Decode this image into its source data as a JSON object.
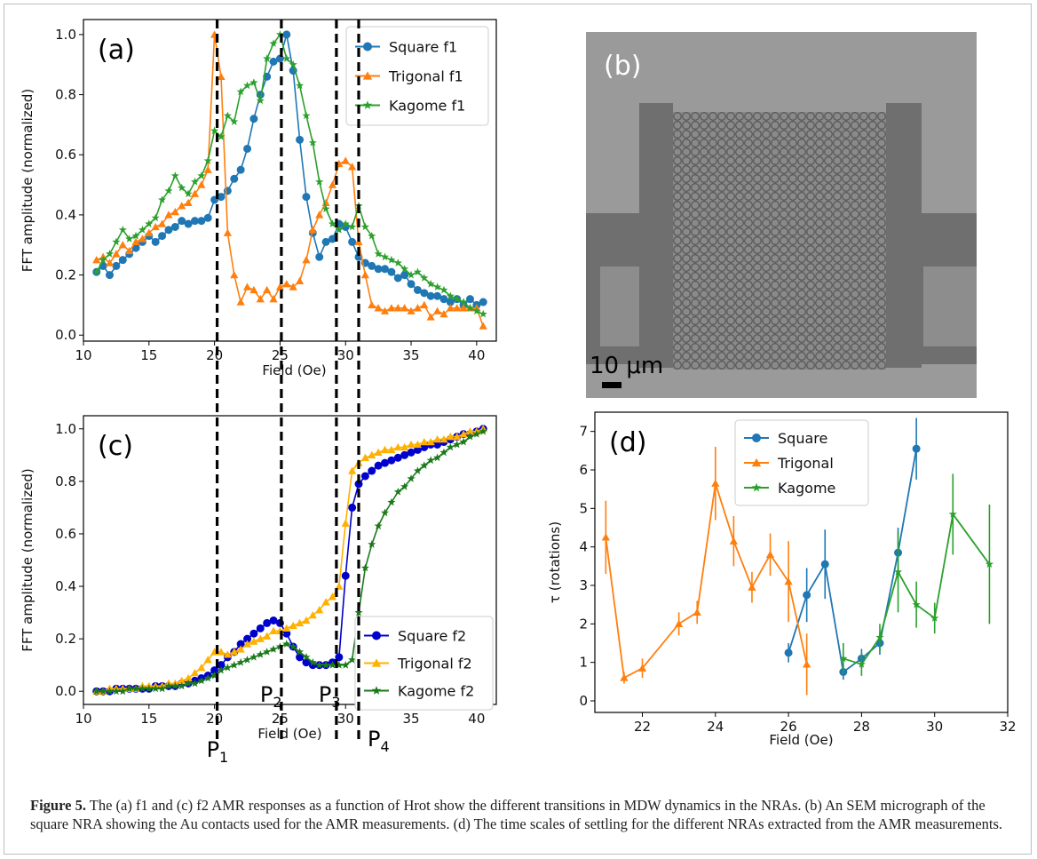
{
  "caption": {
    "label": "Figure 5.",
    "text": "The (a) f1 and (c) f2 AMR responses as a function of Hrot show the different transitions in MDW dynamics in the NRAs. (b) An SEM micrograph of the square NRA showing the Au contacts used for the AMR measurements. (d) The time scales of settling for the different NRAs extracted from the AMR measurements."
  },
  "panel_b": {
    "panel_label": "(b)",
    "scale_bar": "10 μm"
  },
  "transitions": [
    {
      "label": "P1",
      "x": 20.2
    },
    {
      "label": "P2",
      "x": 25.1
    },
    {
      "label": "P3",
      "x": 29.3
    },
    {
      "label": "P4",
      "x": 31.0
    }
  ],
  "chart_data": [
    {
      "id": "a",
      "type": "line",
      "panel_label": "(a)",
      "xlabel": "Field (Oe)",
      "ylabel": "FFT amplitude (normalized)",
      "xlim": [
        10,
        41.5
      ],
      "ylim": [
        -0.02,
        1.05
      ],
      "xticks": [
        10,
        15,
        20,
        25,
        30,
        35,
        40
      ],
      "yticks": [
        0.0,
        0.2,
        0.4,
        0.6,
        0.8,
        1.0
      ],
      "legend": "top-right",
      "series": [
        {
          "name": "Square f1",
          "color": "#1f77b4",
          "marker": "circle",
          "x": [
            11,
            11.5,
            12,
            12.5,
            13,
            13.5,
            14,
            14.5,
            15,
            15.5,
            16,
            16.5,
            17,
            17.5,
            18,
            18.5,
            19,
            19.5,
            20,
            20.5,
            21,
            21.5,
            22,
            22.5,
            23,
            23.5,
            24,
            24.5,
            25,
            25.5,
            26,
            26.5,
            27,
            27.5,
            28,
            28.5,
            29,
            29.5,
            30,
            30.5,
            31,
            31.5,
            32,
            32.5,
            33,
            33.5,
            34,
            34.5,
            35,
            35.5,
            36,
            36.5,
            37,
            37.5,
            38,
            38.5,
            39,
            39.5,
            40,
            40.5
          ],
          "y": [
            0.21,
            0.23,
            0.2,
            0.23,
            0.25,
            0.27,
            0.29,
            0.31,
            0.33,
            0.31,
            0.33,
            0.35,
            0.36,
            0.38,
            0.37,
            0.38,
            0.38,
            0.39,
            0.45,
            0.46,
            0.48,
            0.52,
            0.55,
            0.62,
            0.72,
            0.8,
            0.86,
            0.91,
            0.92,
            1.0,
            0.88,
            0.65,
            0.46,
            0.34,
            0.26,
            0.31,
            0.32,
            0.37,
            0.36,
            0.31,
            0.26,
            0.24,
            0.23,
            0.22,
            0.22,
            0.21,
            0.19,
            0.2,
            0.17,
            0.15,
            0.14,
            0.13,
            0.13,
            0.12,
            0.11,
            0.12,
            0.1,
            0.12,
            0.1,
            0.11
          ]
        },
        {
          "name": "Trigonal f1",
          "color": "#ff7f0e",
          "marker": "triangle",
          "x": [
            11,
            11.5,
            12,
            12.5,
            13,
            13.5,
            14,
            14.5,
            15,
            15.5,
            16,
            16.5,
            17,
            17.5,
            18,
            18.5,
            19,
            19.5,
            20,
            20.5,
            21,
            21.5,
            22,
            22.5,
            23,
            23.5,
            24,
            24.5,
            25,
            25.5,
            26,
            26.5,
            27,
            27.5,
            28,
            28.5,
            29,
            29.5,
            30,
            30.5,
            31,
            31.5,
            32,
            32.5,
            33,
            33.5,
            34,
            34.5,
            35,
            35.5,
            36,
            36.5,
            37,
            37.5,
            38,
            38.5,
            39,
            39.5,
            40,
            40.5
          ],
          "y": [
            0.25,
            0.26,
            0.24,
            0.27,
            0.3,
            0.28,
            0.31,
            0.32,
            0.34,
            0.36,
            0.37,
            0.4,
            0.41,
            0.43,
            0.44,
            0.47,
            0.5,
            0.55,
            1.0,
            0.86,
            0.34,
            0.2,
            0.11,
            0.16,
            0.15,
            0.12,
            0.15,
            0.12,
            0.16,
            0.17,
            0.16,
            0.18,
            0.25,
            0.35,
            0.4,
            0.44,
            0.5,
            0.57,
            0.58,
            0.56,
            0.31,
            0.2,
            0.1,
            0.09,
            0.08,
            0.09,
            0.09,
            0.09,
            0.08,
            0.09,
            0.1,
            0.06,
            0.08,
            0.07,
            0.09,
            0.09,
            0.09,
            0.09,
            0.09,
            0.03
          ]
        },
        {
          "name": "Kagome f1",
          "color": "#2ca02c",
          "marker": "star",
          "x": [
            11,
            11.5,
            12,
            12.5,
            13,
            13.5,
            14,
            14.5,
            15,
            15.5,
            16,
            16.5,
            17,
            17.5,
            18,
            18.5,
            19,
            19.5,
            20,
            20.5,
            21,
            21.5,
            22,
            22.5,
            23,
            23.5,
            24,
            24.5,
            25,
            25.5,
            26,
            26.5,
            27,
            27.5,
            28,
            28.5,
            29,
            29.5,
            30,
            30.5,
            31,
            31.5,
            32,
            32.5,
            33,
            33.5,
            34,
            34.5,
            35,
            35.5,
            36,
            36.5,
            37,
            37.5,
            38,
            38.5,
            39,
            39.5,
            40,
            40.5
          ],
          "y": [
            0.21,
            0.25,
            0.27,
            0.31,
            0.35,
            0.32,
            0.33,
            0.35,
            0.37,
            0.39,
            0.45,
            0.48,
            0.53,
            0.49,
            0.47,
            0.51,
            0.53,
            0.58,
            0.68,
            0.66,
            0.73,
            0.71,
            0.81,
            0.83,
            0.84,
            0.78,
            0.92,
            0.97,
            1.0,
            0.92,
            0.9,
            0.83,
            0.73,
            0.64,
            0.51,
            0.42,
            0.37,
            0.35,
            0.37,
            0.36,
            0.43,
            0.36,
            0.33,
            0.27,
            0.26,
            0.25,
            0.24,
            0.22,
            0.2,
            0.21,
            0.19,
            0.17,
            0.16,
            0.15,
            0.13,
            0.12,
            0.11,
            0.09,
            0.08,
            0.07
          ]
        }
      ]
    },
    {
      "id": "c",
      "type": "line",
      "panel_label": "(c)",
      "xlabel": "Field (Oe)",
      "ylabel": "FFT amplitude (normalized)",
      "xlim": [
        10,
        41.5
      ],
      "ylim": [
        -0.05,
        1.05
      ],
      "xticks": [
        10,
        15,
        20,
        25,
        30,
        35,
        40
      ],
      "yticks": [
        0.0,
        0.2,
        0.4,
        0.6,
        0.8,
        1.0
      ],
      "legend": "bottom-right",
      "series": [
        {
          "name": "Square f2",
          "color": "#0000cc",
          "marker": "circle",
          "x": [
            11,
            11.5,
            12,
            12.5,
            13,
            13.5,
            14,
            14.5,
            15,
            15.5,
            16,
            16.5,
            17,
            17.5,
            18,
            18.5,
            19,
            19.5,
            20,
            20.5,
            21,
            21.5,
            22,
            22.5,
            23,
            23.5,
            24,
            24.5,
            25,
            25.5,
            26,
            26.5,
            27,
            27.5,
            28,
            28.5,
            29,
            29.5,
            30,
            30.5,
            31,
            31.5,
            32,
            32.5,
            33,
            33.5,
            34,
            34.5,
            35,
            35.5,
            36,
            36.5,
            37,
            37.5,
            38,
            38.5,
            39,
            39.5,
            40,
            40.5
          ],
          "y": [
            0.0,
            0.0,
            0.0,
            0.01,
            0.01,
            0.01,
            0.01,
            0.01,
            0.01,
            0.02,
            0.02,
            0.02,
            0.02,
            0.03,
            0.03,
            0.04,
            0.05,
            0.06,
            0.08,
            0.1,
            0.13,
            0.15,
            0.18,
            0.2,
            0.22,
            0.24,
            0.26,
            0.27,
            0.26,
            0.22,
            0.17,
            0.13,
            0.11,
            0.1,
            0.1,
            0.1,
            0.11,
            0.13,
            0.44,
            0.7,
            0.79,
            0.82,
            0.84,
            0.86,
            0.87,
            0.88,
            0.89,
            0.9,
            0.91,
            0.92,
            0.93,
            0.94,
            0.94,
            0.95,
            0.96,
            0.97,
            0.98,
            0.98,
            0.99,
            1.0
          ]
        },
        {
          "name": "Trigonal f2",
          "color": "#ffb000",
          "marker": "triangle",
          "x": [
            11,
            11.5,
            12,
            12.5,
            13,
            13.5,
            14,
            14.5,
            15,
            15.5,
            16,
            16.5,
            17,
            17.5,
            18,
            18.5,
            19,
            19.5,
            20,
            20.5,
            21,
            21.5,
            22,
            22.5,
            23,
            23.5,
            24,
            24.5,
            25,
            25.5,
            26,
            26.5,
            27,
            27.5,
            28,
            28.5,
            29,
            29.5,
            30,
            30.5,
            31,
            31.5,
            32,
            32.5,
            33,
            33.5,
            34,
            34.5,
            35,
            35.5,
            36,
            36.5,
            37,
            37.5,
            38,
            38.5,
            39,
            39.5,
            40,
            40.5
          ],
          "y": [
            0.0,
            0.0,
            0.01,
            0.01,
            0.01,
            0.01,
            0.01,
            0.02,
            0.02,
            0.02,
            0.02,
            0.03,
            0.03,
            0.04,
            0.05,
            0.07,
            0.09,
            0.12,
            0.15,
            0.15,
            0.14,
            0.15,
            0.16,
            0.18,
            0.19,
            0.2,
            0.21,
            0.23,
            0.23,
            0.24,
            0.25,
            0.26,
            0.27,
            0.29,
            0.31,
            0.34,
            0.36,
            0.4,
            0.64,
            0.84,
            0.87,
            0.89,
            0.9,
            0.91,
            0.92,
            0.92,
            0.93,
            0.93,
            0.94,
            0.94,
            0.95,
            0.95,
            0.96,
            0.96,
            0.97,
            0.97,
            0.98,
            0.99,
            0.99,
            1.0
          ]
        },
        {
          "name": "Kagome f2",
          "color": "#1a7a1a",
          "marker": "star",
          "x": [
            11,
            11.5,
            12,
            12.5,
            13,
            13.5,
            14,
            14.5,
            15,
            15.5,
            16,
            16.5,
            17,
            17.5,
            18,
            18.5,
            19,
            19.5,
            20,
            20.5,
            21,
            21.5,
            22,
            22.5,
            23,
            23.5,
            24,
            24.5,
            25,
            25.5,
            26,
            26.5,
            27,
            27.5,
            28,
            28.5,
            29,
            29.5,
            30,
            30.5,
            31,
            31.5,
            32,
            32.5,
            33,
            33.5,
            34,
            34.5,
            35,
            35.5,
            36,
            36.5,
            37,
            37.5,
            38,
            38.5,
            39,
            39.5,
            40,
            40.5
          ],
          "y": [
            0.0,
            0.0,
            0.0,
            0.0,
            0.0,
            0.01,
            0.01,
            0.01,
            0.01,
            0.01,
            0.01,
            0.02,
            0.02,
            0.02,
            0.03,
            0.03,
            0.04,
            0.05,
            0.06,
            0.08,
            0.09,
            0.1,
            0.11,
            0.12,
            0.13,
            0.14,
            0.15,
            0.16,
            0.17,
            0.18,
            0.17,
            0.15,
            0.13,
            0.11,
            0.1,
            0.1,
            0.1,
            0.1,
            0.1,
            0.12,
            0.3,
            0.47,
            0.56,
            0.63,
            0.68,
            0.72,
            0.76,
            0.78,
            0.81,
            0.84,
            0.86,
            0.88,
            0.89,
            0.91,
            0.93,
            0.94,
            0.95,
            0.97,
            0.98,
            0.99
          ]
        }
      ]
    },
    {
      "id": "d",
      "type": "line",
      "panel_label": "(d)",
      "xlabel": "Field (Oe)",
      "ylabel": "τ (rotations)",
      "xlim": [
        20.7,
        32.0
      ],
      "ylim": [
        -0.3,
        7.5
      ],
      "xticks": [
        22,
        24,
        26,
        28,
        30,
        32
      ],
      "yticks": [
        0,
        1,
        2,
        3,
        4,
        5,
        6,
        7
      ],
      "legend": "top-center",
      "series": [
        {
          "name": "Square",
          "color": "#1f77b4",
          "marker": "circle",
          "x": [
            26,
            26.5,
            27,
            27.5,
            28,
            28.5,
            29,
            29.5
          ],
          "y": [
            1.25,
            2.75,
            3.55,
            0.75,
            1.1,
            1.5,
            3.85,
            6.55
          ],
          "err": [
            0.25,
            0.7,
            0.9,
            0.2,
            0.25,
            0.3,
            0.65,
            0.8
          ]
        },
        {
          "name": "Trigonal",
          "color": "#ff7f0e",
          "marker": "triangle",
          "x": [
            21,
            21.5,
            22,
            23,
            23.5,
            24,
            24.5,
            25,
            25.5,
            26,
            26.5
          ],
          "y": [
            4.25,
            0.6,
            0.85,
            2.0,
            2.3,
            5.65,
            4.15,
            2.95,
            3.8,
            3.1,
            0.95
          ],
          "err": [
            0.95,
            0.15,
            0.25,
            0.3,
            0.3,
            0.95,
            0.65,
            0.4,
            0.55,
            1.05,
            0.8
          ]
        },
        {
          "name": "Kagome",
          "color": "#2ca02c",
          "marker": "star",
          "x": [
            27.5,
            28,
            28.5,
            29,
            29.5,
            30,
            30.5,
            31.5
          ],
          "y": [
            1.1,
            0.95,
            1.65,
            3.35,
            2.5,
            2.15,
            4.85,
            3.55
          ],
          "err": [
            0.4,
            0.3,
            0.35,
            1.05,
            0.6,
            0.4,
            1.05,
            1.55
          ]
        }
      ]
    }
  ]
}
